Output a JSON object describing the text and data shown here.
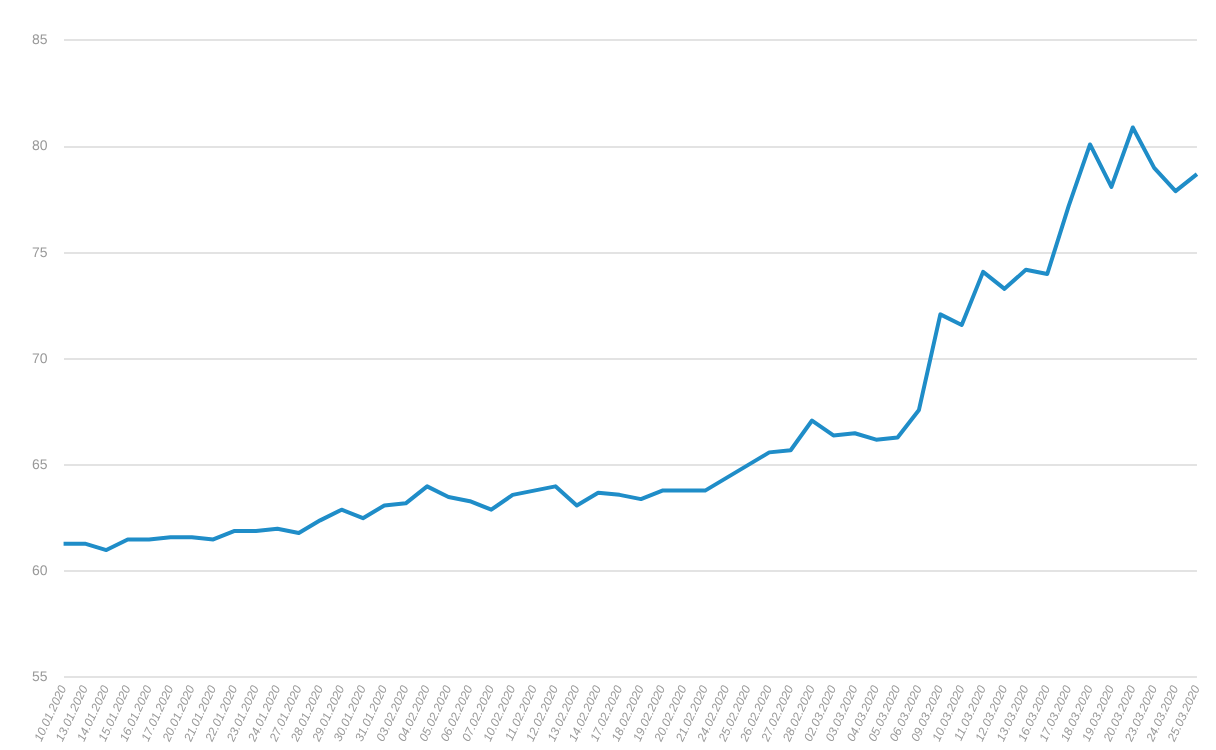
{
  "chart_data": {
    "type": "line",
    "categories": [
      "10.01.2020",
      "13.01.2020",
      "14.01.2020",
      "15.01.2020",
      "16.01.2020",
      "17.01.2020",
      "20.01.2020",
      "21.01.2020",
      "22.01.2020",
      "23.01.2020",
      "24.01.2020",
      "27.01.2020",
      "28.01.2020",
      "29.01.2020",
      "30.01.2020",
      "31.01.2020",
      "03.02.2020",
      "04.02.2020",
      "05.02.2020",
      "06.02.2020",
      "07.02.2020",
      "10.02.2020",
      "11.02.2020",
      "12.02.2020",
      "13.02.2020",
      "14.02.2020",
      "17.02.2020",
      "18.02.2020",
      "19.02.2020",
      "20.02.2020",
      "21.02.2020",
      "24.02.2020",
      "25.02.2020",
      "26.02.2020",
      "27.02.2020",
      "28.02.2020",
      "02.03.2020",
      "03.03.2020",
      "04.03.2020",
      "05.03.2020",
      "06.03.2020",
      "09.03.2020",
      "10.03.2020",
      "11.03.2020",
      "12.03.2020",
      "13.03.2020",
      "16.03.2020",
      "17.03.2020",
      "18.03.2020",
      "19.03.2020",
      "20.03.2020",
      "23.03.2020",
      "24.03.2020",
      "25.03.2020"
    ],
    "series": [
      {
        "color": "#1f8dc8",
        "values": [
          61.3,
          61.3,
          61.0,
          61.5,
          61.5,
          61.6,
          61.6,
          61.5,
          61.9,
          61.9,
          62.0,
          61.8,
          62.4,
          62.9,
          62.5,
          63.1,
          63.2,
          64.0,
          63.5,
          63.3,
          62.9,
          63.6,
          63.8,
          64.0,
          63.1,
          63.7,
          63.6,
          63.4,
          63.8,
          63.8,
          63.8,
          64.4,
          65.0,
          65.6,
          65.7,
          67.1,
          66.4,
          66.5,
          66.2,
          66.3,
          67.6,
          72.1,
          71.6,
          74.1,
          73.3,
          74.2,
          74.0,
          77.2,
          80.1,
          78.1,
          80.9,
          79.0,
          77.9,
          78.7
        ]
      }
    ],
    "ylim": [
      55,
      85
    ],
    "yticks": [
      55,
      60,
      65,
      70,
      75,
      80,
      85
    ],
    "grid": "y",
    "legend": false,
    "marker": "none",
    "line_style": "solid"
  }
}
